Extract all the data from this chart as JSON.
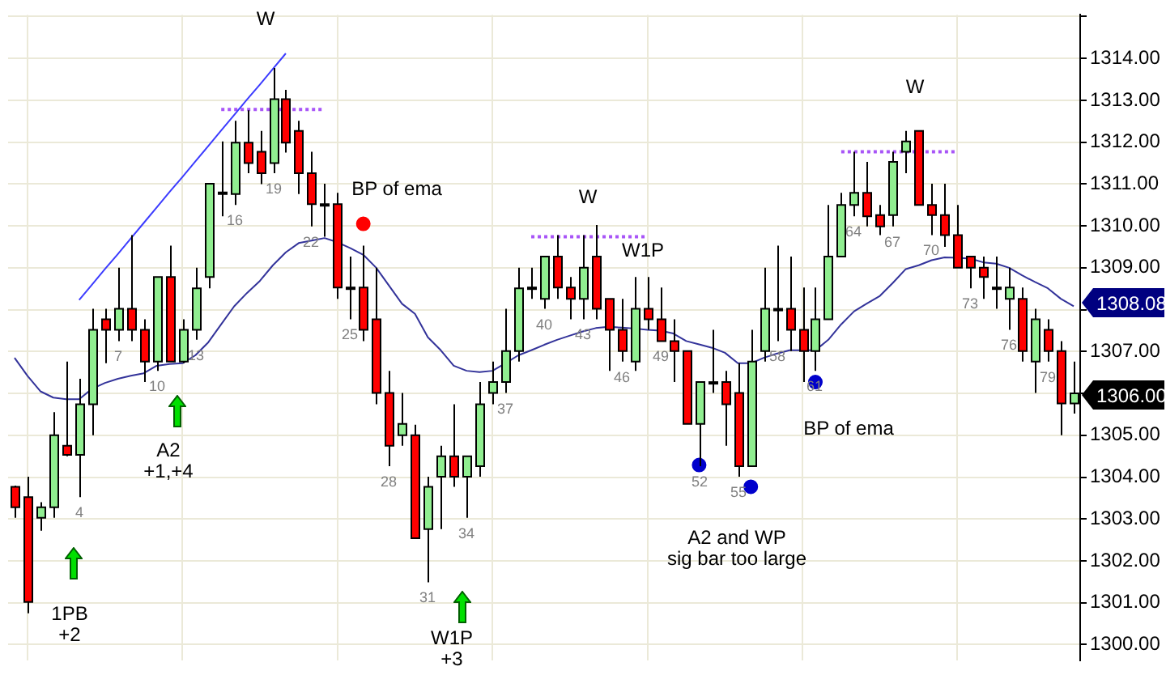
{
  "chart_data": {
    "type": "candlestick",
    "categories": [
      null,
      null,
      null,
      null,
      null,
      null,
      null,
      null,
      null,
      null,
      null,
      null,
      null,
      null,
      null,
      null,
      null,
      null,
      null,
      null,
      null,
      null,
      null,
      null,
      null,
      null,
      null,
      null,
      null,
      null,
      null,
      null,
      null,
      null,
      null,
      null,
      null,
      null,
      null,
      null,
      null,
      null,
      null,
      null,
      null,
      null,
      null,
      null,
      null,
      null,
      null,
      null,
      null,
      null,
      null,
      null,
      null,
      null,
      null,
      null,
      null,
      null,
      null,
      null,
      null,
      null,
      null,
      null,
      null,
      null,
      null,
      null,
      null,
      null,
      null,
      null,
      null,
      null,
      null,
      null,
      null,
      null,
      null
    ],
    "ohlc": [
      [
        1303.77,
        1303.8,
        1303.03,
        1303.28
      ],
      [
        1303.52,
        1304.01,
        1300.75,
        1301.02
      ],
      [
        1303.03,
        1303.4,
        1302.72,
        1303.28
      ],
      [
        1303.28,
        1305.55,
        1303.03,
        1305.0
      ],
      [
        1304.75,
        1306.76,
        1304.5,
        1304.53
      ],
      [
        1304.53,
        1306.35,
        1303.52,
        1305.74
      ],
      [
        1305.74,
        1308.02,
        1305.0,
        1307.52
      ],
      [
        1307.77,
        1308.02,
        1306.72,
        1307.52
      ],
      [
        1307.52,
        1309.0,
        1307.25,
        1308.02
      ],
      [
        1308.02,
        1309.78,
        1307.25,
        1307.52
      ],
      [
        1307.52,
        1307.77,
        1306.27,
        1306.76
      ],
      [
        1306.76,
        1308.78,
        1306.54,
        1308.78
      ],
      [
        1308.78,
        1309.53,
        1306.76,
        1306.76
      ],
      [
        1306.76,
        1307.77,
        1306.72,
        1307.52
      ],
      [
        1307.52,
        1309.0,
        1307.28,
        1308.51
      ],
      [
        1308.78,
        1311.01,
        1308.51,
        1311.01
      ],
      [
        1310.8,
        1312.02,
        1310.23,
        1310.8
      ],
      [
        1310.76,
        1312.51,
        1310.5,
        1311.99
      ],
      [
        1311.99,
        1312.76,
        1311.26,
        1311.5
      ],
      [
        1311.77,
        1312.27,
        1311.0,
        1311.26
      ],
      [
        1311.5,
        1313.77,
        1311.26,
        1313.03
      ],
      [
        1313.03,
        1313.25,
        1311.75,
        1311.99
      ],
      [
        1312.27,
        1312.51,
        1310.76,
        1311.26
      ],
      [
        1311.26,
        1311.77,
        1309.99,
        1310.52
      ],
      [
        1310.52,
        1311.01,
        1309.74,
        1310.52
      ],
      [
        1310.52,
        1310.79,
        1308.26,
        1308.53
      ],
      [
        1308.53,
        1309.27,
        1307.77,
        1308.53
      ],
      [
        1308.53,
        1309.53,
        1307.25,
        1307.52
      ],
      [
        1307.77,
        1309.0,
        1305.74,
        1306.01
      ],
      [
        1306.01,
        1306.54,
        1304.26,
        1304.75
      ],
      [
        1305.0,
        1306.01,
        1304.75,
        1305.27
      ],
      [
        1305.0,
        1305.25,
        1302.54,
        1302.54
      ],
      [
        1302.76,
        1304.01,
        1301.49,
        1303.77
      ],
      [
        1304.01,
        1304.75,
        1302.76,
        1304.5
      ],
      [
        1304.5,
        1305.74,
        1303.77,
        1304.01
      ],
      [
        1304.01,
        1304.5,
        1303.03,
        1304.5
      ],
      [
        1304.26,
        1306.27,
        1304.01,
        1305.74
      ],
      [
        1306.01,
        1306.76,
        1305.74,
        1306.27
      ],
      [
        1306.27,
        1308.02,
        1306.01,
        1307.01
      ],
      [
        1307.01,
        1309.0,
        1306.76,
        1308.51
      ],
      [
        1308.53,
        1309.0,
        1308.26,
        1308.53
      ],
      [
        1308.26,
        1309.27,
        1308.02,
        1309.27
      ],
      [
        1309.27,
        1309.78,
        1308.26,
        1308.53
      ],
      [
        1308.53,
        1308.78,
        1307.77,
        1308.26
      ],
      [
        1308.26,
        1309.78,
        1307.77,
        1309.0
      ],
      [
        1309.27,
        1310.02,
        1307.77,
        1308.02
      ],
      [
        1308.26,
        1308.26,
        1306.54,
        1307.52
      ],
      [
        1307.52,
        1308.26,
        1306.76,
        1307.01
      ],
      [
        1306.76,
        1308.78,
        1306.54,
        1308.02
      ],
      [
        1308.02,
        1308.78,
        1307.52,
        1307.77
      ],
      [
        1307.77,
        1308.53,
        1307.25,
        1307.25
      ],
      [
        1307.25,
        1307.77,
        1306.27,
        1307.01
      ],
      [
        1307.01,
        1307.01,
        1305.27,
        1305.27
      ],
      [
        1305.27,
        1306.27,
        1304.26,
        1306.27
      ],
      [
        1306.27,
        1307.52,
        1306.01,
        1306.27
      ],
      [
        1306.27,
        1306.54,
        1304.75,
        1305.74
      ],
      [
        1306.01,
        1306.72,
        1304.01,
        1304.26
      ],
      [
        1304.26,
        1307.52,
        1304.26,
        1306.76
      ],
      [
        1307.01,
        1309.0,
        1306.76,
        1308.02
      ],
      [
        1308.02,
        1309.53,
        1307.25,
        1308.02
      ],
      [
        1308.02,
        1309.27,
        1307.01,
        1307.52
      ],
      [
        1307.52,
        1308.53,
        1306.27,
        1307.01
      ],
      [
        1307.01,
        1308.53,
        1306.54,
        1307.77
      ],
      [
        1307.77,
        1310.5,
        1307.77,
        1309.27
      ],
      [
        1309.27,
        1310.79,
        1309.27,
        1310.5
      ],
      [
        1310.5,
        1311.77,
        1310.23,
        1310.79
      ],
      [
        1310.79,
        1311.53,
        1309.99,
        1310.23
      ],
      [
        1310.26,
        1310.5,
        1309.78,
        1309.99
      ],
      [
        1310.26,
        1311.77,
        1309.99,
        1311.53
      ],
      [
        1311.77,
        1312.27,
        1311.26,
        1312.02
      ],
      [
        1312.27,
        1312.27,
        1310.5,
        1310.5
      ],
      [
        1310.5,
        1311.01,
        1309.78,
        1310.26
      ],
      [
        1310.26,
        1311.01,
        1309.5,
        1309.78
      ],
      [
        1309.78,
        1310.5,
        1309.0,
        1309.0
      ],
      [
        1309.27,
        1309.27,
        1308.51,
        1309.0
      ],
      [
        1309.0,
        1309.27,
        1308.26,
        1308.78
      ],
      [
        1308.53,
        1309.27,
        1308.02,
        1308.53
      ],
      [
        1308.26,
        1309.0,
        1307.52,
        1308.53
      ],
      [
        1308.26,
        1308.53,
        1306.76,
        1307.01
      ],
      [
        1306.76,
        1308.02,
        1306.01,
        1307.77
      ],
      [
        1307.52,
        1307.77,
        1306.76,
        1307.01
      ],
      [
        1307.01,
        1307.25,
        1305.0,
        1305.76
      ],
      [
        1305.76,
        1306.76,
        1305.52,
        1306.0
      ]
    ],
    "colors": [
      "#ff0000",
      "#ff0000",
      "#90ee90",
      "#90ee90",
      "#ff0000",
      "#90ee90",
      "#90ee90",
      "#ff0000",
      "#90ee90",
      "#ff0000",
      "#ff0000",
      "#90ee90",
      "#ff0000",
      "#90ee90",
      "#90ee90",
      "#90ee90",
      "#000000",
      "#90ee90",
      "#ff0000",
      "#ff0000",
      "#90ee90",
      "#ff0000",
      "#ff0000",
      "#ff0000",
      "#000000",
      "#ff0000",
      "#000000",
      "#ff0000",
      "#ff0000",
      "#ff0000",
      "#90ee90",
      "#ff0000",
      "#90ee90",
      "#90ee90",
      "#ff0000",
      "#90ee90",
      "#90ee90",
      "#90ee90",
      "#90ee90",
      "#90ee90",
      "#000000",
      "#90ee90",
      "#ff0000",
      "#ff0000",
      "#90ee90",
      "#ff0000",
      "#ff0000",
      "#ff0000",
      "#90ee90",
      "#ff0000",
      "#ff0000",
      "#ff0000",
      "#ff0000",
      "#90ee90",
      "#000000",
      "#ff0000",
      "#ff0000",
      "#90ee90",
      "#90ee90",
      "#000000",
      "#ff0000",
      "#ff0000",
      "#90ee90",
      "#90ee90",
      "#90ee90",
      "#90ee90",
      "#ff0000",
      "#ff0000",
      "#90ee90",
      "#90ee90",
      "#ff0000",
      "#ff0000",
      "#ff0000",
      "#ff0000",
      "#ff0000",
      "#ff0000",
      "#000000",
      "#90ee90",
      "#ff0000",
      "#90ee90",
      "#ff0000",
      "#ff0000",
      "#90ee90"
    ],
    "value_labels": [
      null,
      null,
      null,
      null,
      null,
      "4",
      null,
      null,
      "7",
      null,
      null,
      "10",
      null,
      null,
      "13",
      null,
      null,
      "16",
      null,
      null,
      "19",
      null,
      null,
      "22",
      null,
      null,
      "25",
      null,
      null,
      "28",
      null,
      null,
      "31",
      null,
      null,
      "34",
      null,
      null,
      "37",
      null,
      null,
      "40",
      null,
      null,
      "43",
      null,
      null,
      "46",
      null,
      null,
      "49",
      null,
      null,
      "52",
      null,
      null,
      "55",
      null,
      null,
      "58",
      null,
      null,
      "61",
      null,
      null,
      "64",
      null,
      null,
      "67",
      null,
      null,
      "70",
      null,
      null,
      "73",
      null,
      null,
      "76",
      null,
      null,
      "79",
      null,
      null
    ],
    "series": [
      {
        "type": "line",
        "color": "#33339a",
        "values": [
          1306.85,
          1306.42,
          1306.05,
          1305.9,
          1305.86,
          1305.86,
          1306.11,
          1306.25,
          1306.35,
          1306.42,
          1306.48,
          1306.66,
          1306.7,
          1306.72,
          1306.91,
          1307.22,
          1307.65,
          1308.08,
          1308.4,
          1308.69,
          1309.06,
          1309.37,
          1309.59,
          1309.65,
          1309.71,
          1309.61,
          1309.47,
          1309.31,
          1309.0,
          1308.57,
          1308.14,
          1307.9,
          1307.34,
          1307.03,
          1306.66,
          1306.54,
          1306.51,
          1306.54,
          1306.72,
          1306.91,
          1307.03,
          1307.16,
          1307.28,
          1307.38,
          1307.48,
          1307.56,
          1307.59,
          1307.57,
          1307.55,
          1307.52,
          1307.5,
          1307.43,
          1307.25,
          1307.17,
          1307.09,
          1306.97,
          1306.72,
          1306.72,
          1306.85,
          1306.95,
          1307.03,
          1307.03,
          1307.03,
          1307.28,
          1307.65,
          1307.96,
          1308.15,
          1308.33,
          1308.64,
          1308.97,
          1309.06,
          1309.18,
          1309.25,
          1309.24,
          1309.22,
          1309.13,
          1309.1,
          1309.0,
          1308.82,
          1308.66,
          1308.51,
          1308.26,
          1308.08
        ]
      },
      {
        "type": "line",
        "color": "#3c3cff",
        "values": [
          null,
          null,
          null,
          null,
          null,
          1308.23,
          1308.6,
          1308.97,
          1309.33,
          1309.7,
          1310.07,
          1310.44,
          1310.81,
          1311.17,
          1311.54,
          1311.91,
          1312.28,
          1312.65,
          1313.02,
          1313.38,
          1313.75,
          1314.12,
          null,
          null,
          null,
          null,
          null,
          null,
          null,
          null,
          null,
          null,
          null,
          null,
          null,
          null,
          null,
          null,
          null,
          null,
          null,
          null,
          null,
          null,
          null,
          null,
          null,
          null,
          null,
          null,
          null,
          null,
          null,
          null,
          null,
          null,
          null,
          null,
          null,
          null,
          null,
          null,
          null,
          null,
          null,
          null,
          null,
          null,
          null,
          null,
          null,
          null,
          null,
          null,
          null,
          null,
          null,
          null,
          null,
          null,
          null,
          null,
          null
        ]
      },
      {
        "type": "line",
        "line_style": "dotted",
        "color": "#a855f7",
        "values": [
          null,
          null,
          null,
          null,
          null,
          null,
          null,
          null,
          null,
          null,
          null,
          null,
          null,
          null,
          null,
          null,
          1312.78,
          1312.78,
          1312.78,
          1312.78,
          1312.78,
          1312.78,
          1312.78,
          1312.78,
          1312.78,
          null,
          null,
          null,
          null,
          null,
          null,
          null,
          null,
          null,
          null,
          null,
          null,
          null,
          null,
          null,
          null,
          null,
          null,
          null,
          null,
          null,
          null,
          null,
          null,
          null,
          null,
          null,
          null,
          null,
          null,
          null,
          null,
          null,
          null,
          null,
          null,
          null,
          null,
          null,
          null,
          null,
          null,
          null,
          null,
          null,
          null,
          null,
          null,
          null,
          null,
          null,
          null,
          null,
          null,
          null,
          null,
          null,
          null
        ]
      },
      {
        "type": "line",
        "line_style": "dotted",
        "color": "#a855f7",
        "values": [
          null,
          null,
          null,
          null,
          null,
          null,
          null,
          null,
          null,
          null,
          null,
          null,
          null,
          null,
          null,
          null,
          null,
          null,
          null,
          null,
          null,
          null,
          null,
          null,
          null,
          null,
          null,
          null,
          null,
          null,
          null,
          null,
          null,
          null,
          null,
          null,
          null,
          null,
          null,
          null,
          1309.74,
          1309.74,
          1309.74,
          1309.74,
          1309.74,
          1309.74,
          1309.74,
          1309.74,
          1309.74,
          1309.74,
          null,
          null,
          null,
          null,
          null,
          null,
          null,
          null,
          null,
          null,
          null,
          null,
          null,
          null,
          null,
          null,
          null,
          null,
          null,
          null,
          null,
          null,
          null,
          null,
          null,
          null,
          null,
          null,
          null,
          null,
          null,
          null,
          null
        ]
      },
      {
        "type": "line",
        "line_style": "dotted",
        "color": "#a855f7",
        "values": [
          null,
          null,
          null,
          null,
          null,
          null,
          null,
          null,
          null,
          null,
          null,
          null,
          null,
          null,
          null,
          null,
          null,
          null,
          null,
          null,
          null,
          null,
          null,
          null,
          null,
          null,
          null,
          null,
          null,
          null,
          null,
          null,
          null,
          null,
          null,
          null,
          null,
          null,
          null,
          null,
          null,
          null,
          null,
          null,
          null,
          null,
          null,
          null,
          null,
          null,
          null,
          null,
          null,
          null,
          null,
          null,
          null,
          null,
          null,
          null,
          null,
          null,
          null,
          null,
          1311.77,
          1311.77,
          1311.77,
          1311.77,
          1311.77,
          1311.77,
          1311.77,
          1311.77,
          1311.77,
          1311.77,
          null,
          null,
          null,
          null,
          null,
          null,
          null,
          null,
          null
        ]
      },
      {
        "type": "scatter",
        "marker": "circle",
        "color": "#ff0000",
        "values": [
          null,
          null,
          null,
          null,
          null,
          null,
          null,
          null,
          null,
          null,
          null,
          null,
          null,
          null,
          null,
          null,
          null,
          null,
          null,
          null,
          null,
          null,
          null,
          null,
          null,
          null,
          null,
          1310.05,
          null,
          null,
          null,
          null,
          null,
          null,
          null,
          null,
          null,
          null,
          null,
          null,
          null,
          null,
          null,
          null,
          null,
          null,
          null,
          null,
          null,
          null,
          null,
          null,
          null,
          null,
          null,
          null,
          null,
          null,
          null,
          null,
          null,
          null,
          null,
          null,
          null,
          null,
          null,
          null,
          null,
          null,
          null,
          null,
          null,
          null,
          null,
          null,
          null,
          null,
          null,
          null,
          null,
          null,
          null
        ]
      },
      {
        "type": "scatter",
        "marker": "circle",
        "color": "#0000cc",
        "values": [
          null,
          null,
          null,
          null,
          null,
          null,
          null,
          null,
          null,
          null,
          null,
          null,
          null,
          null,
          null,
          null,
          null,
          null,
          null,
          null,
          null,
          null,
          null,
          null,
          null,
          null,
          null,
          null,
          null,
          null,
          null,
          null,
          null,
          null,
          null,
          null,
          null,
          null,
          null,
          null,
          null,
          null,
          null,
          null,
          null,
          null,
          null,
          null,
          null,
          null,
          null,
          null,
          null,
          1304.29,
          null,
          null,
          null,
          1303.77,
          null,
          null,
          null,
          null,
          1306.27,
          null,
          null,
          null,
          null,
          null,
          null,
          null,
          null,
          null,
          null,
          null,
          null,
          null,
          null,
          null,
          null,
          null,
          null,
          null,
          null
        ]
      }
    ],
    "ylim": [
      1299.63,
      1315.04
    ],
    "yticks": [
      {
        "value": 1300,
        "label": "1300.00"
      },
      {
        "value": 1301,
        "label": "1301.00"
      },
      {
        "value": 1302,
        "label": "1302.00"
      },
      {
        "value": 1303,
        "label": "1303.00"
      },
      {
        "value": 1304,
        "label": "1304.00"
      },
      {
        "value": 1305,
        "label": "1305.00"
      },
      {
        "value": 1306,
        "label": null
      },
      {
        "value": 1307,
        "label": "1307.00"
      },
      {
        "value": 1308,
        "label": null
      },
      {
        "value": 1309,
        "label": "1309.00"
      },
      {
        "value": 1310,
        "label": "1310.00"
      },
      {
        "value": 1311,
        "label": "1311.00"
      },
      {
        "value": 1312,
        "label": "1312.00"
      },
      {
        "value": 1313,
        "label": "1313.00"
      },
      {
        "value": 1314,
        "label": "1314.00"
      },
      {
        "value": 1315,
        "label": null
      }
    ],
    "tick_labels": "y",
    "grid": true,
    "annotations": [
      "W",
      "BP of ema",
      "W",
      "W1P",
      "W",
      "BP of ema",
      "1PB\n+2",
      "A2\n+1,+4",
      "W1P\n+3",
      "A2 and WP\nsig bar too large",
      "1308.08",
      "1306.00"
    ]
  }
}
